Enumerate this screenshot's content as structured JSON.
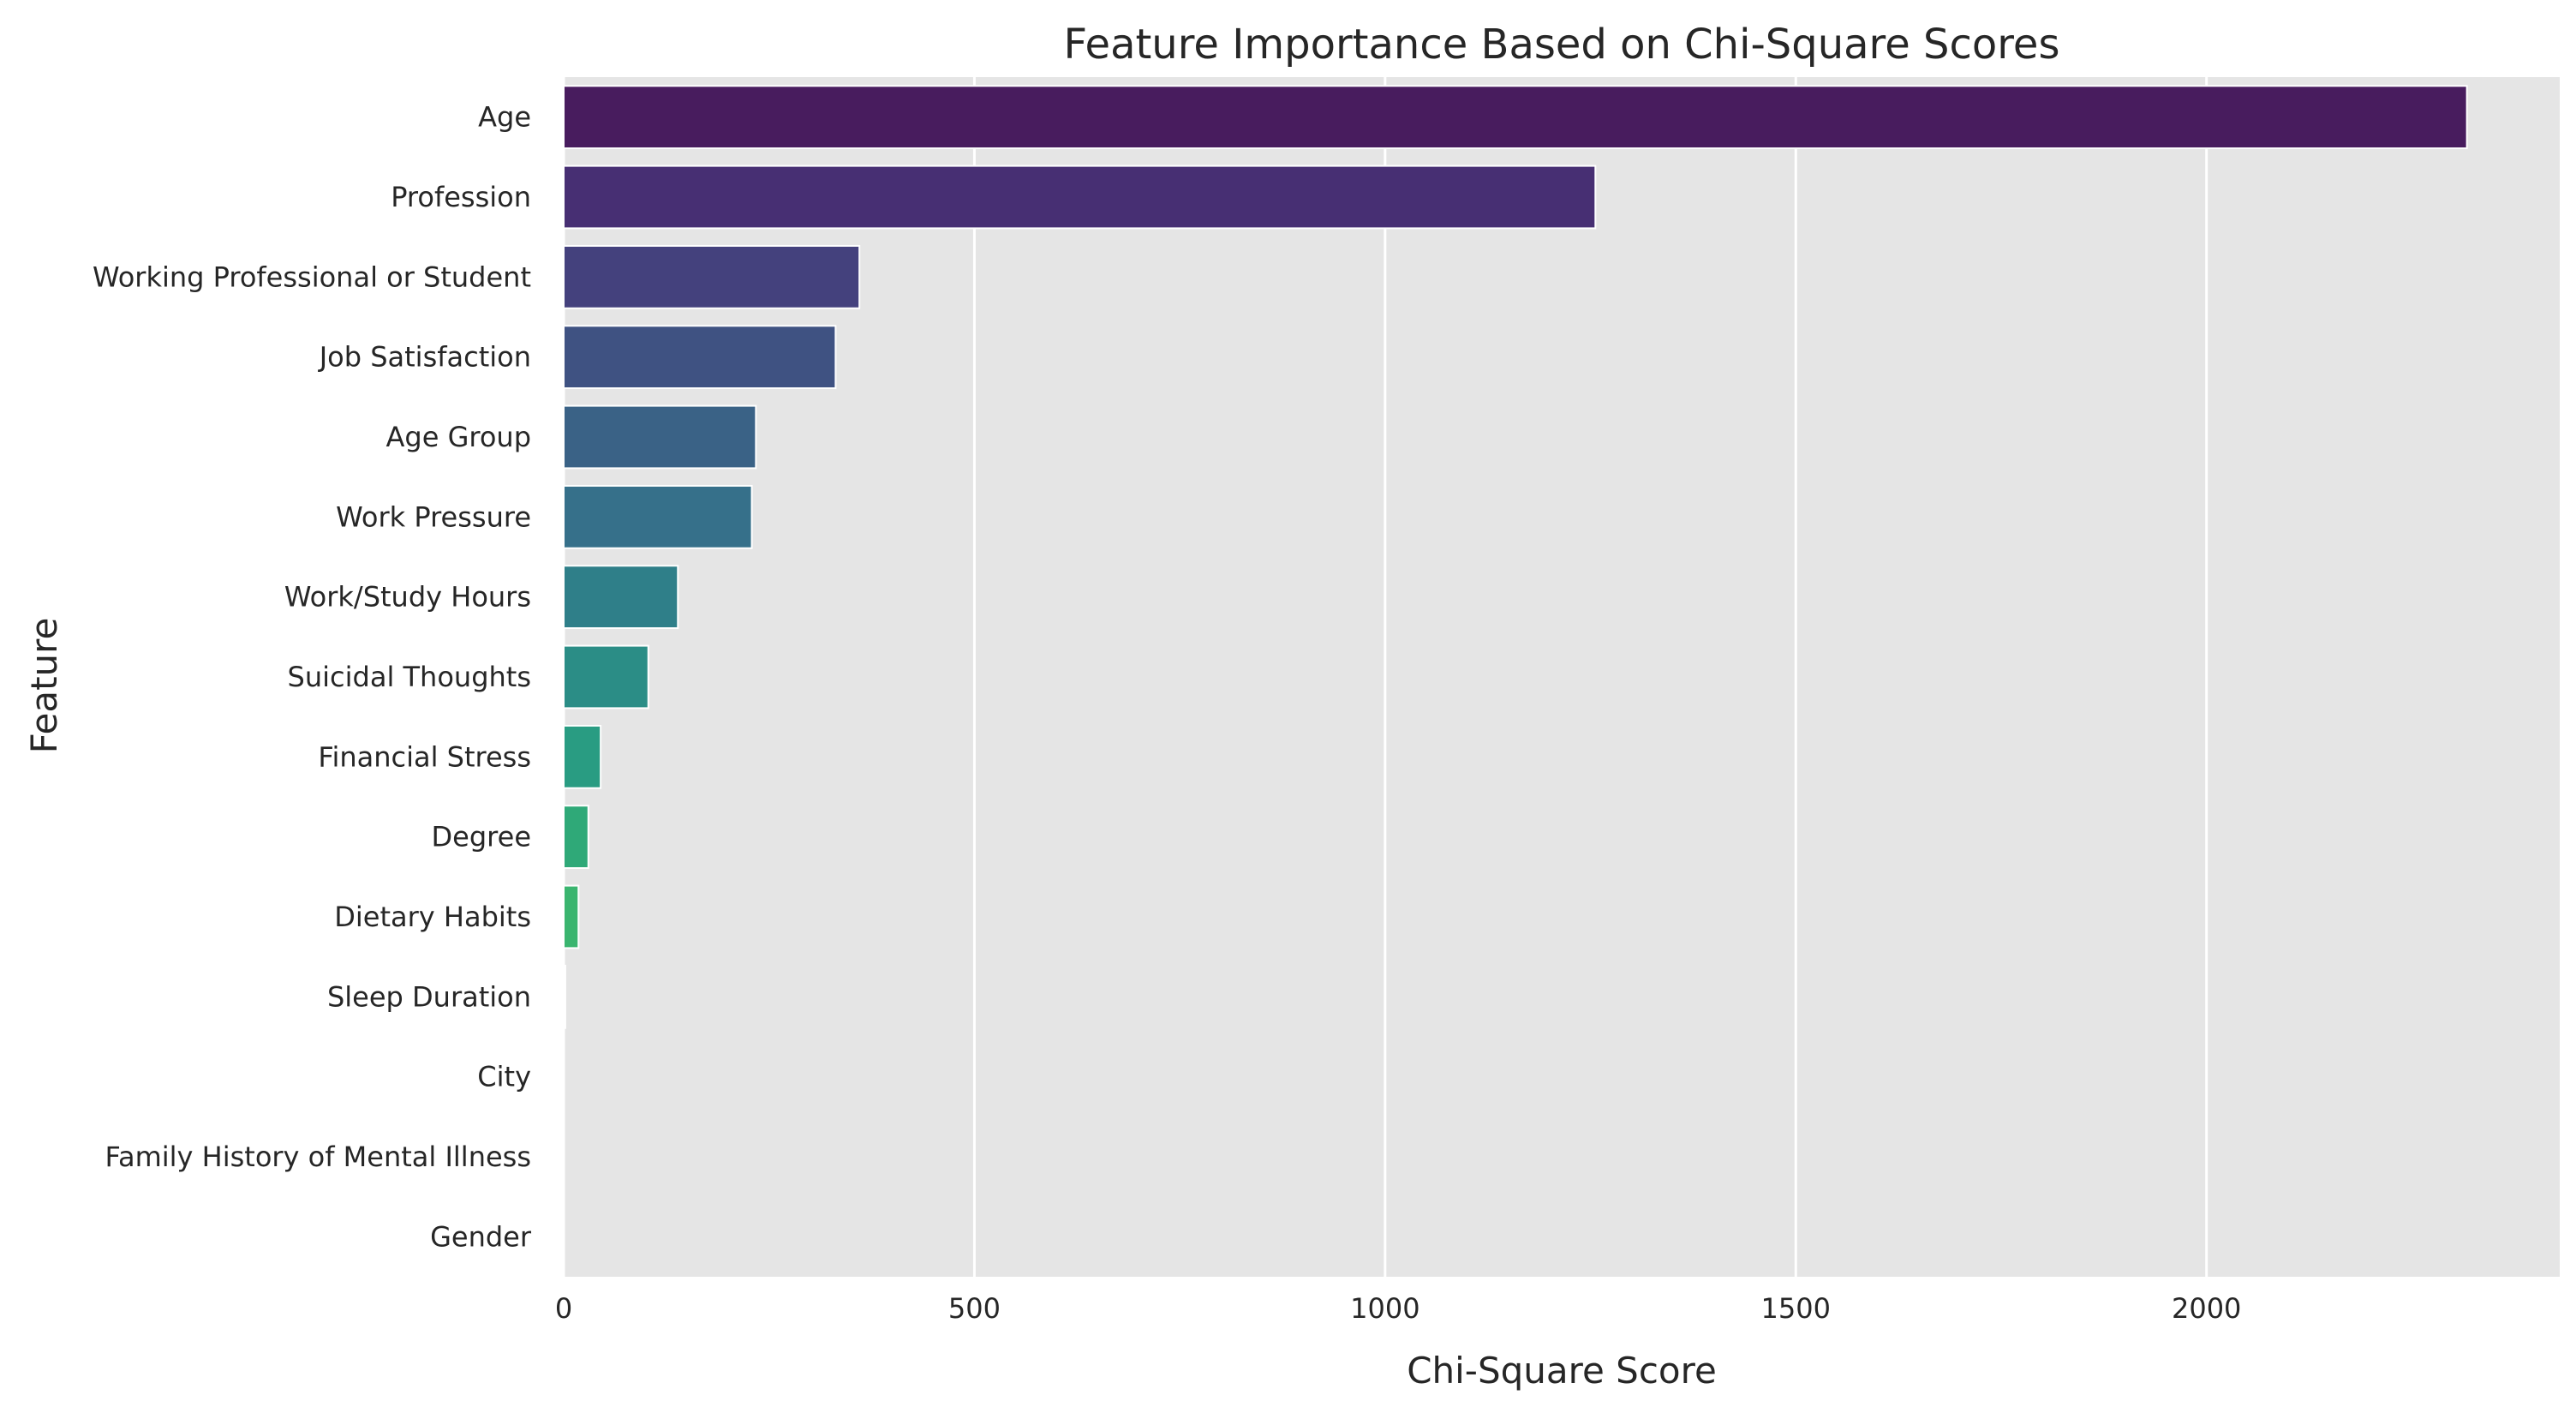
{
  "chart_data": {
    "type": "bar",
    "orientation": "horizontal",
    "title": "Feature Importance Based on Chi-Square Scores",
    "xlabel": "Chi-Square Score",
    "ylabel": "Feature",
    "xlim": [
      0,
      2430
    ],
    "xticks": [
      0,
      500,
      1000,
      1500,
      2000
    ],
    "xtick_labels": [
      "0",
      "500",
      "1000",
      "1500",
      "2000"
    ],
    "grid": true,
    "palette": "viridis",
    "background": "#e5e5e5",
    "categories": [
      "Age",
      "Profession",
      "Working Professional or Student",
      "Job Satisfaction",
      "Age Group",
      "Work Pressure",
      "Work/Study Hours",
      "Suicidal Thoughts",
      "Financial Stress",
      "Degree",
      "Dietary Habits",
      "Sleep Duration",
      "City",
      "Family History of Mental Illness",
      "Gender"
    ],
    "values": [
      2317,
      1256,
      360,
      331,
      234,
      229,
      139,
      103,
      45,
      30,
      18,
      2,
      0.5,
      0.2,
      0.1
    ],
    "colors": [
      "#481c5e",
      "#472f73",
      "#44417d",
      "#3f5282",
      "#3a6286",
      "#36708a",
      "#2f7f89",
      "#2b8d86",
      "#299c82",
      "#2fa978",
      "#3ab56f",
      "#4fbf66",
      "#6cc95a",
      "#8fd44a",
      "#b5de2b"
    ]
  }
}
